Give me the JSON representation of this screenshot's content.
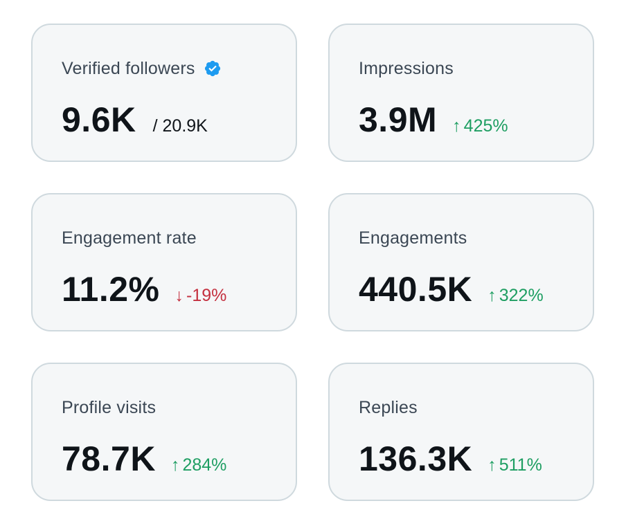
{
  "cards": [
    {
      "label": "Verified followers",
      "value": "9.6K",
      "total": "/ 20.9K",
      "delta": "",
      "direction": ""
    },
    {
      "label": "Impressions",
      "value": "3.9M",
      "total": "",
      "delta": "425%",
      "direction": "up"
    },
    {
      "label": "Engagement rate",
      "value": "11.2%",
      "total": "",
      "delta": "-19%",
      "direction": "down"
    },
    {
      "label": "Engagements",
      "value": "440.5K",
      "total": "",
      "delta": "322%",
      "direction": "up"
    },
    {
      "label": "Profile visits",
      "value": "78.7K",
      "total": "",
      "delta": "284%",
      "direction": "up"
    },
    {
      "label": "Replies",
      "value": "136.3K",
      "total": "",
      "delta": "511%",
      "direction": "up"
    }
  ],
  "colors": {
    "card_bg": "#f5f7f8",
    "card_border": "#cfd9de",
    "positive": "#1e9e62",
    "negative": "#c4303f",
    "verified": "#1d9bf0"
  },
  "icons": {
    "verified": "verified-badge-icon",
    "up": "arrow-up-icon",
    "down": "arrow-down-icon"
  }
}
